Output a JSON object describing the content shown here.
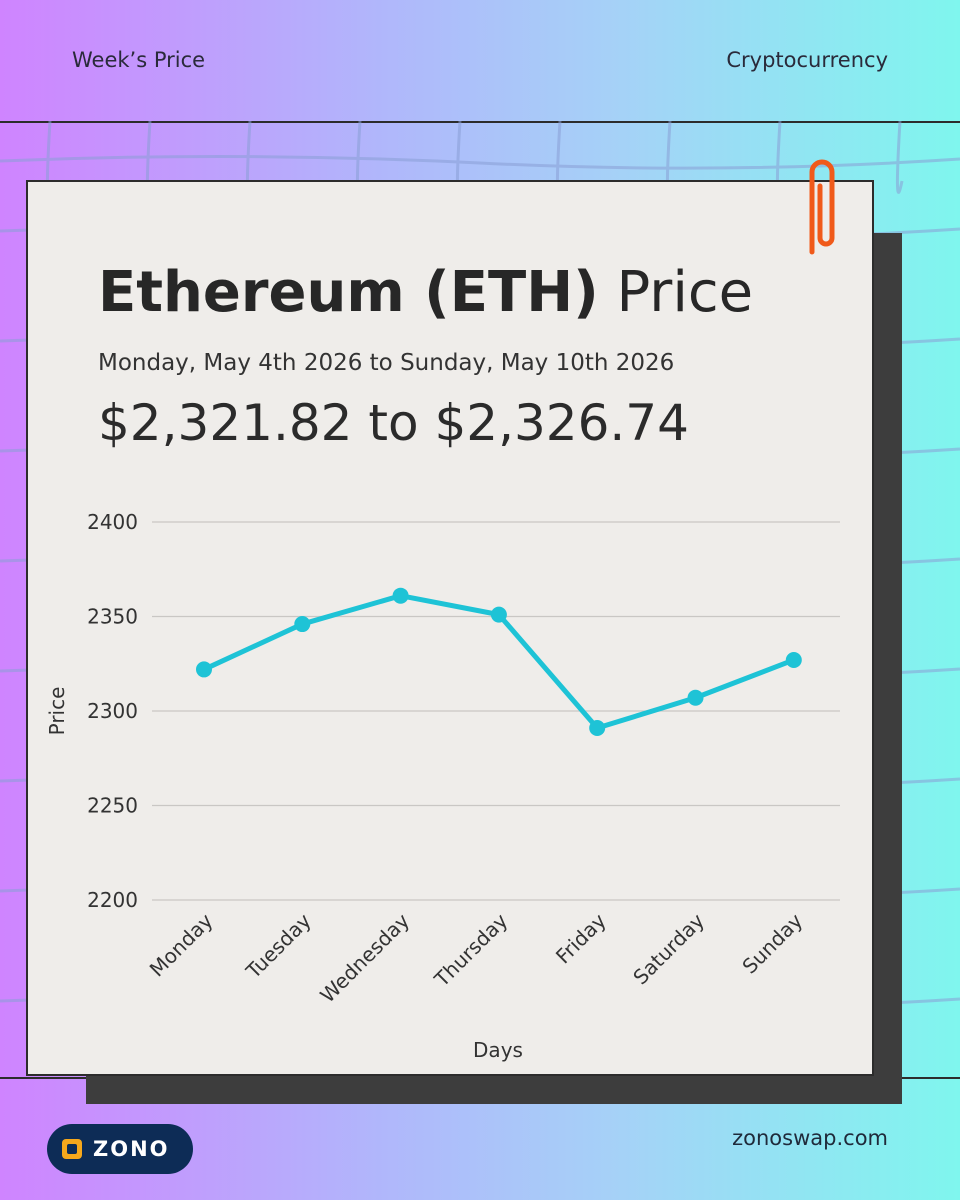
{
  "header": {
    "left": "Week’s Price",
    "right": "Cryptocurrency"
  },
  "card": {
    "title_bold": "Ethereum (ETH)",
    "title_light": " Price",
    "subtitle": "Monday, May 4th 2026 to Sunday, May 10th 2026",
    "range": "$2,321.82 to $2,326.74"
  },
  "chart_data": {
    "type": "line",
    "categories": [
      "Monday",
      "Tuesday",
      "Wednesday",
      "Thursday",
      "Friday",
      "Saturday",
      "Sunday"
    ],
    "series": [
      {
        "values": [
          2322,
          2346,
          2361,
          2351,
          2291,
          2307,
          2327
        ]
      }
    ],
    "xlabel": "Days",
    "ylabel": "Price",
    "ylim": [
      2200,
      2400
    ],
    "yticks": [
      2200,
      2250,
      2300,
      2350,
      2400
    ],
    "grid": true,
    "line_color": "#1ec3d6"
  },
  "footer": {
    "logo_text": "ZONO",
    "url": "zonoswap.com"
  },
  "colors": {
    "card_bg": "#efedea",
    "shadow": "#3d3d3d",
    "clip": "#f05a1a",
    "logo_bg": "#0d2c56",
    "logo_mark": "#f6a81c"
  }
}
